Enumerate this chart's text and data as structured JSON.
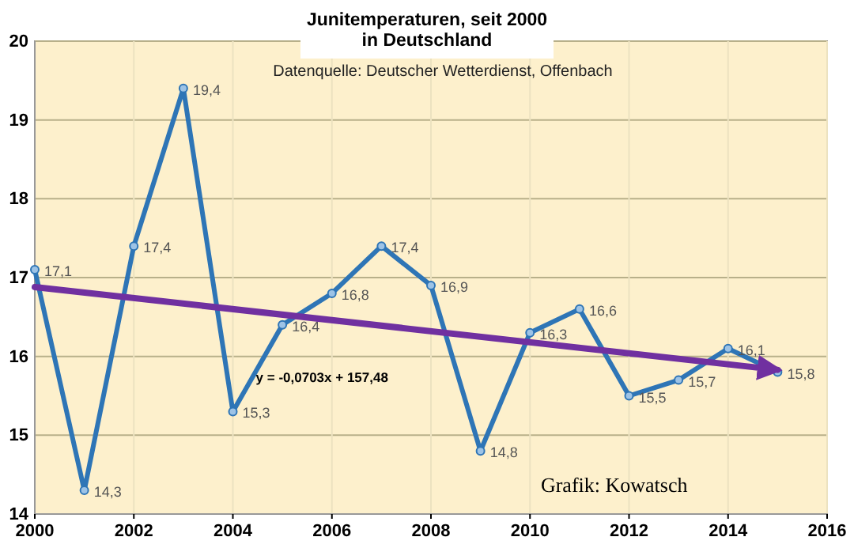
{
  "chart_data": {
    "type": "line",
    "title": "Junitemperaturen, seit 2000\nin Deutschland",
    "subtitle": "Datenquelle: Deutscher Wetterdienst, Offenbach",
    "x": [
      2000,
      2001,
      2002,
      2003,
      2004,
      2005,
      2006,
      2007,
      2008,
      2009,
      2010,
      2011,
      2012,
      2013,
      2014,
      2015
    ],
    "series": [
      {
        "color": "#2e75b6",
        "values": [
          17.1,
          14.3,
          17.4,
          19.4,
          15.3,
          16.4,
          16.8,
          17.4,
          16.9,
          14.8,
          16.3,
          16.6,
          15.5,
          15.7,
          16.1,
          15.8
        ],
        "value_labels": [
          "17,1",
          "14,3",
          "17,4",
          "19,4",
          "15,3",
          "16,4",
          "16,8",
          "17,4",
          "16,9",
          "14,8",
          "16,3",
          "16,6",
          "15,5",
          "15,7",
          "16,1",
          "15,8"
        ],
        "marker": "circle"
      },
      {
        "type": "line",
        "color": "#7030a0",
        "x": [
          2000,
          2015
        ],
        "values": [
          16.88,
          15.83
        ]
      }
    ],
    "annotations": [
      "y = -0,0703x + 157,48",
      "Grafik: Kowatsch"
    ],
    "xlim": [
      2000,
      2016
    ],
    "xticks": [
      2000,
      2002,
      2004,
      2006,
      2008,
      2010,
      2012,
      2014,
      2016
    ],
    "ylim": [
      14,
      20
    ],
    "yticks": [
      14,
      15,
      16,
      17,
      18,
      19,
      20
    ],
    "grid": true
  }
}
